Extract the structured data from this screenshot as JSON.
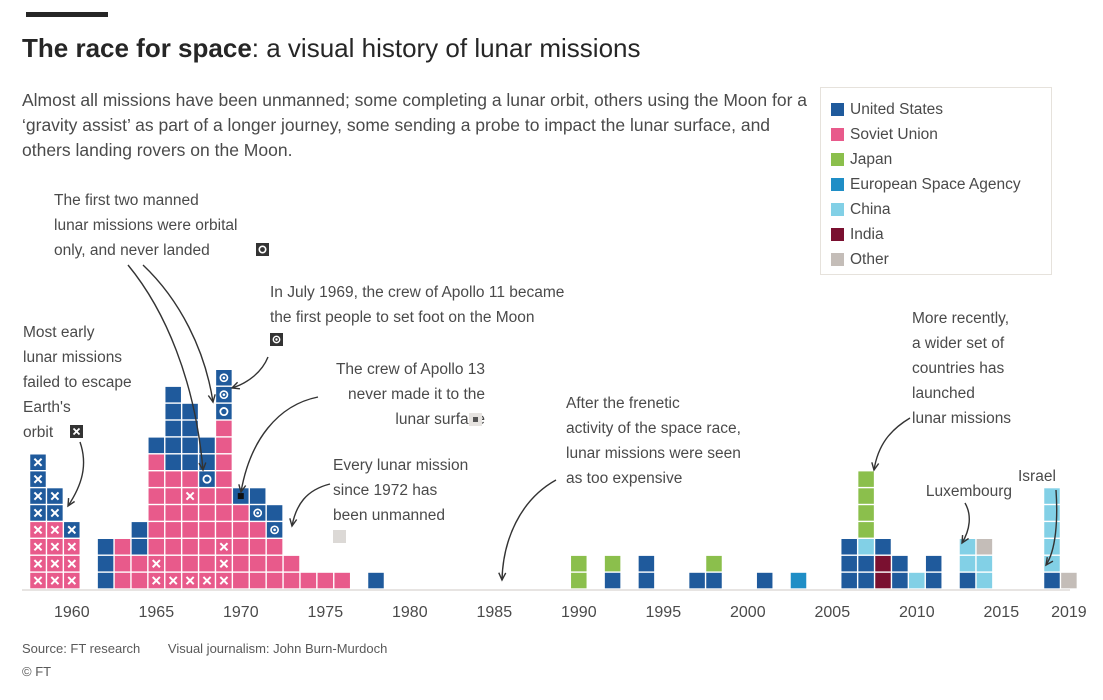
{
  "header": {
    "title_bold": "The race for space",
    "title_rest": ": a visual history of lunar missions",
    "subtitle": "Almost all missions have been unmanned; some completing a lunar orbit, others using the Moon for a ‘gravity assist’ as part of a longer journey, some sending a probe to impact the lunar surface, and others landing rovers on the Moon."
  },
  "legend": [
    {
      "name": "United States",
      "color": "#1f5a9c"
    },
    {
      "name": "Soviet Union",
      "color": "#e85a8b"
    },
    {
      "name": "Japan",
      "color": "#8bbf4c"
    },
    {
      "name": "European Space Agency",
      "color": "#1f8ec6"
    },
    {
      "name": "China",
      "color": "#82d0e6"
    },
    {
      "name": "India",
      "color": "#7a1030"
    },
    {
      "name": "Other",
      "color": "#c4bdb8"
    }
  ],
  "annotations": {
    "early": [
      "Most early",
      "lunar missions",
      "failed to escape",
      "Earth's",
      "orbit"
    ],
    "first_manned": [
      "The first two manned",
      "lunar missions were orbital",
      "only, and never landed"
    ],
    "apollo11": [
      "In July 1969, the crew of Apollo 11 became",
      "the first people to set foot on the Moon"
    ],
    "apollo13": [
      "The crew of Apollo 13",
      "never made it to the",
      "lunar surface"
    ],
    "unmanned": [
      "Every lunar mission",
      "since 1972 has",
      "been unmanned"
    ],
    "frenetic": [
      "After the frenetic",
      "activity of the space race,",
      "lunar missions were seen",
      "as too expensive"
    ],
    "recent": [
      "More recently,",
      "a wider set of",
      "countries has",
      "launched",
      "lunar missions"
    ],
    "luxembourg": "Luxembourg",
    "israel": "Israel"
  },
  "footer": {
    "source": "Source: FT research",
    "credit": "Visual journalism: John Burn-Murdoch",
    "copyright": "© FT"
  },
  "chart_data": {
    "type": "unit-stacked-bar",
    "x_label": "",
    "x_ticks": [
      1960,
      1965,
      1970,
      1975,
      1980,
      1985,
      1990,
      1995,
      2000,
      2005,
      2010,
      2015,
      2019
    ],
    "x_range": [
      1958,
      2019
    ],
    "unit": "one square = one mission",
    "marker_legend": {
      "x": "failed to escape Earth's orbit",
      "ring": "manned orbital, never landed",
      "dot": "crew set foot on the Moon"
    },
    "stacks": [
      {
        "year": 1958,
        "missions": [
          [
            "SU",
            "x"
          ],
          [
            "SU",
            "x"
          ],
          [
            "SU",
            "x"
          ],
          [
            "SU",
            "x"
          ],
          [
            "US",
            "x"
          ],
          [
            "US",
            "x"
          ],
          [
            "US",
            "x"
          ],
          [
            "US",
            "x"
          ]
        ]
      },
      {
        "year": 1959,
        "missions": [
          [
            "SU",
            "x"
          ],
          [
            "SU",
            "x"
          ],
          [
            "SU",
            "x"
          ],
          [
            "SU",
            "x"
          ],
          [
            "US",
            "x"
          ],
          [
            "US",
            "x"
          ]
        ]
      },
      {
        "year": 1960,
        "missions": [
          [
            "SU",
            "x"
          ],
          [
            "SU",
            "x"
          ],
          [
            "SU",
            "x"
          ],
          [
            "US",
            "x"
          ]
        ]
      },
      {
        "year": 1962,
        "missions": [
          [
            "US",
            ""
          ],
          [
            "US",
            ""
          ],
          [
            "US",
            ""
          ]
        ]
      },
      {
        "year": 1963,
        "missions": [
          [
            "SU",
            ""
          ],
          [
            "SU",
            ""
          ],
          [
            "SU",
            ""
          ]
        ]
      },
      {
        "year": 1964,
        "missions": [
          [
            "SU",
            ""
          ],
          [
            "SU",
            ""
          ],
          [
            "US",
            ""
          ],
          [
            "US",
            ""
          ]
        ]
      },
      {
        "year": 1965,
        "missions": [
          [
            "SU",
            "x"
          ],
          [
            "SU",
            "x"
          ],
          [
            "SU",
            ""
          ],
          [
            "SU",
            ""
          ],
          [
            "SU",
            ""
          ],
          [
            "SU",
            ""
          ],
          [
            "SU",
            ""
          ],
          [
            "SU",
            ""
          ],
          [
            "US",
            ""
          ]
        ]
      },
      {
        "year": 1966,
        "missions": [
          [
            "SU",
            "x"
          ],
          [
            "SU",
            ""
          ],
          [
            "SU",
            ""
          ],
          [
            "SU",
            ""
          ],
          [
            "SU",
            ""
          ],
          [
            "SU",
            ""
          ],
          [
            "SU",
            ""
          ],
          [
            "US",
            ""
          ],
          [
            "US",
            ""
          ],
          [
            "US",
            ""
          ],
          [
            "US",
            ""
          ],
          [
            "US",
            ""
          ]
        ]
      },
      {
        "year": 1967,
        "missions": [
          [
            "SU",
            "x"
          ],
          [
            "SU",
            ""
          ],
          [
            "SU",
            ""
          ],
          [
            "SU",
            ""
          ],
          [
            "SU",
            ""
          ],
          [
            "SU",
            "x"
          ],
          [
            "SU",
            ""
          ],
          [
            "US",
            ""
          ],
          [
            "US",
            ""
          ],
          [
            "US",
            ""
          ],
          [
            "US",
            ""
          ]
        ]
      },
      {
        "year": 1968,
        "missions": [
          [
            "SU",
            "x"
          ],
          [
            "SU",
            ""
          ],
          [
            "SU",
            ""
          ],
          [
            "SU",
            ""
          ],
          [
            "SU",
            ""
          ],
          [
            "SU",
            ""
          ],
          [
            "US",
            "ring"
          ],
          [
            "US",
            ""
          ],
          [
            "US",
            ""
          ]
        ]
      },
      {
        "year": 1969,
        "missions": [
          [
            "SU",
            "x"
          ],
          [
            "SU",
            "x"
          ],
          [
            "SU",
            "x"
          ],
          [
            "SU",
            ""
          ],
          [
            "SU",
            ""
          ],
          [
            "SU",
            ""
          ],
          [
            "SU",
            ""
          ],
          [
            "SU",
            ""
          ],
          [
            "SU",
            ""
          ],
          [
            "SU",
            ""
          ],
          [
            "US",
            "ring"
          ],
          [
            "US",
            "dot"
          ],
          [
            "US",
            "dot"
          ]
        ]
      },
      {
        "year": 1970,
        "missions": [
          [
            "SU",
            ""
          ],
          [
            "SU",
            ""
          ],
          [
            "SU",
            ""
          ],
          [
            "SU",
            ""
          ],
          [
            "SU",
            ""
          ],
          [
            "US",
            "apollo13"
          ]
        ]
      },
      {
        "year": 1971,
        "missions": [
          [
            "SU",
            ""
          ],
          [
            "SU",
            ""
          ],
          [
            "SU",
            ""
          ],
          [
            "SU",
            ""
          ],
          [
            "US",
            "dot"
          ],
          [
            "US",
            ""
          ]
        ]
      },
      {
        "year": 1972,
        "missions": [
          [
            "SU",
            ""
          ],
          [
            "SU",
            ""
          ],
          [
            "SU",
            ""
          ],
          [
            "US",
            "dot"
          ],
          [
            "US",
            ""
          ]
        ]
      },
      {
        "year": 1973,
        "missions": [
          [
            "SU",
            ""
          ],
          [
            "SU",
            ""
          ]
        ]
      },
      {
        "year": 1974,
        "missions": [
          [
            "SU",
            ""
          ]
        ]
      },
      {
        "year": 1975,
        "missions": [
          [
            "SU",
            ""
          ]
        ]
      },
      {
        "year": 1976,
        "missions": [
          [
            "SU",
            ""
          ]
        ]
      },
      {
        "year": 1978,
        "missions": [
          [
            "US",
            ""
          ]
        ]
      },
      {
        "year": 1990,
        "missions": [
          [
            "JP",
            ""
          ],
          [
            "JP",
            ""
          ]
        ]
      },
      {
        "year": 1992,
        "missions": [
          [
            "US",
            ""
          ],
          [
            "JP",
            ""
          ]
        ]
      },
      {
        "year": 1994,
        "missions": [
          [
            "US",
            ""
          ],
          [
            "US",
            ""
          ]
        ]
      },
      {
        "year": 1997,
        "missions": [
          [
            "US",
            ""
          ]
        ]
      },
      {
        "year": 1998,
        "missions": [
          [
            "US",
            ""
          ],
          [
            "JP",
            ""
          ]
        ]
      },
      {
        "year": 2001,
        "missions": [
          [
            "US",
            ""
          ]
        ]
      },
      {
        "year": 2003,
        "missions": [
          [
            "ESA",
            ""
          ]
        ]
      },
      {
        "year": 2006,
        "missions": [
          [
            "US",
            ""
          ],
          [
            "US",
            ""
          ],
          [
            "US",
            ""
          ]
        ]
      },
      {
        "year": 2007,
        "missions": [
          [
            "US",
            ""
          ],
          [
            "US",
            ""
          ],
          [
            "CN",
            ""
          ],
          [
            "JP",
            ""
          ],
          [
            "JP",
            ""
          ],
          [
            "JP",
            ""
          ],
          [
            "JP",
            ""
          ]
        ]
      },
      {
        "year": 2008,
        "missions": [
          [
            "IN",
            ""
          ],
          [
            "IN",
            ""
          ],
          [
            "US",
            ""
          ]
        ]
      },
      {
        "year": 2009,
        "missions": [
          [
            "US",
            ""
          ],
          [
            "US",
            ""
          ]
        ]
      },
      {
        "year": 2010,
        "missions": [
          [
            "CN",
            ""
          ]
        ]
      },
      {
        "year": 2011,
        "missions": [
          [
            "US",
            ""
          ],
          [
            "US",
            ""
          ]
        ]
      },
      {
        "year": 2013,
        "missions": [
          [
            "US",
            ""
          ],
          [
            "CN",
            ""
          ],
          [
            "CN",
            ""
          ]
        ]
      },
      {
        "year": 2014,
        "missions": [
          [
            "CN",
            ""
          ],
          [
            "CN",
            ""
          ],
          [
            "OT",
            ""
          ]
        ]
      },
      {
        "year": 2018,
        "missions": [
          [
            "US",
            ""
          ],
          [
            "CN",
            ""
          ],
          [
            "CN",
            ""
          ],
          [
            "CN",
            ""
          ],
          [
            "CN",
            ""
          ],
          [
            "CN",
            ""
          ]
        ]
      },
      {
        "year": 2019,
        "missions": [
          [
            "OT",
            ""
          ]
        ]
      }
    ]
  }
}
